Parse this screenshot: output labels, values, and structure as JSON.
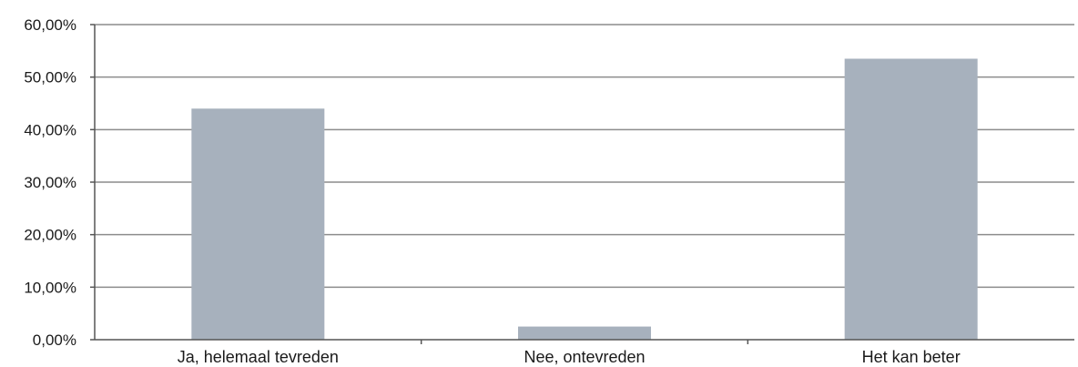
{
  "chart_data": {
    "type": "bar",
    "categories": [
      "Ja, helemaal tevreden",
      "Nee, ontevreden",
      "Het kan beter"
    ],
    "values": [
      44.0,
      2.5,
      53.5
    ],
    "y_tick_labels": [
      "0,00%",
      "10,00%",
      "20,00%",
      "30,00%",
      "40,00%",
      "50,00%",
      "60,00%"
    ],
    "ylim": [
      0,
      60
    ],
    "grid": true,
    "bar_color": "#a7b1bd",
    "grid_color": "#8c8c8c",
    "axis_color": "#555555"
  }
}
